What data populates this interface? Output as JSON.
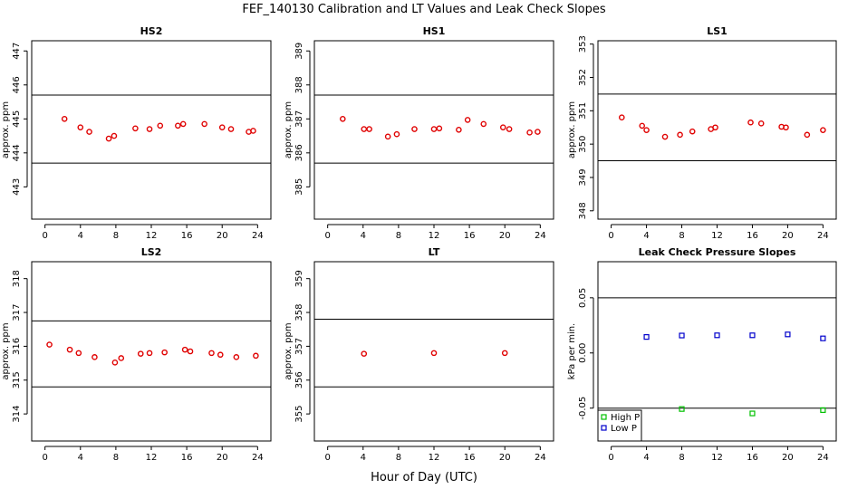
{
  "title": "FEF_140130  Calibration and LT Values and Leak Check Slopes",
  "xlabel": "Hour of Day (UTC)",
  "chart_data": [
    {
      "type": "scatter",
      "title": "HS2",
      "ylabel": "approx. ppm",
      "xlim": [
        -1.5,
        25.5
      ],
      "ylim": [
        442.05,
        447.3
      ],
      "xticks": [
        0,
        4,
        8,
        12,
        16,
        20,
        24
      ],
      "yticks": [
        443,
        444,
        445,
        446,
        447
      ],
      "hlines": [
        443.7,
        445.7
      ],
      "series": [
        {
          "color": "#e00000",
          "marker": "circle",
          "x": [
            2.2,
            4,
            5,
            7.2,
            7.8,
            10.2,
            11.8,
            13,
            15,
            15.6,
            18,
            20,
            21,
            23,
            23.5
          ],
          "y": [
            445.0,
            444.75,
            444.62,
            444.42,
            444.5,
            444.72,
            444.7,
            444.8,
            444.8,
            444.85,
            444.85,
            444.75,
            444.7,
            444.62,
            444.65
          ]
        }
      ]
    },
    {
      "type": "scatter",
      "title": "HS1",
      "ylabel": "approx. ppm",
      "xlim": [
        -1.5,
        25.5
      ],
      "ylim": [
        384.05,
        389.3
      ],
      "xticks": [
        0,
        4,
        8,
        12,
        16,
        20,
        24
      ],
      "yticks": [
        385,
        386,
        387,
        388,
        389
      ],
      "hlines": [
        385.7,
        387.7
      ],
      "series": [
        {
          "color": "#e00000",
          "marker": "circle",
          "x": [
            1.7,
            4.1,
            4.7,
            6.8,
            7.8,
            9.8,
            12,
            12.6,
            14.8,
            15.8,
            17.6,
            19.8,
            20.5,
            22.8,
            23.7
          ],
          "y": [
            387.0,
            386.7,
            386.7,
            386.48,
            386.55,
            386.7,
            386.7,
            386.72,
            386.68,
            386.97,
            386.85,
            386.75,
            386.7,
            386.6,
            386.62
          ]
        }
      ]
    },
    {
      "type": "scatter",
      "title": "LS1",
      "ylabel": "approx. ppm",
      "xlim": [
        -1.5,
        25.5
      ],
      "ylim": [
        347.75,
        353.1
      ],
      "xticks": [
        0,
        4,
        8,
        12,
        16,
        20,
        24
      ],
      "yticks": [
        348,
        349,
        350,
        351,
        352,
        353
      ],
      "hlines": [
        349.5,
        351.5
      ],
      "series": [
        {
          "color": "#e00000",
          "marker": "circle",
          "x": [
            1.2,
            3.5,
            4,
            6.1,
            7.8,
            9.2,
            11.3,
            11.8,
            15.8,
            17,
            19.3,
            19.8,
            22.2,
            24
          ],
          "y": [
            350.8,
            350.55,
            350.42,
            350.22,
            350.28,
            350.38,
            350.45,
            350.5,
            350.65,
            350.62,
            350.52,
            350.5,
            350.28,
            350.42
          ]
        }
      ]
    },
    {
      "type": "scatter",
      "title": "LS2",
      "ylabel": "approx. ppm",
      "xlim": [
        -1.5,
        25.5
      ],
      "ylim": [
        313.2,
        318.5
      ],
      "xticks": [
        0,
        4,
        8,
        12,
        16,
        20,
        24
      ],
      "yticks": [
        314,
        315,
        316,
        317,
        318
      ],
      "hlines": [
        314.8,
        316.75
      ],
      "series": [
        {
          "color": "#e00000",
          "marker": "circle",
          "x": [
            0.5,
            2.8,
            3.8,
            5.6,
            7.9,
            8.6,
            10.8,
            11.8,
            13.5,
            15.8,
            16.4,
            18.8,
            19.8,
            21.6,
            23.8
          ],
          "y": [
            316.05,
            315.9,
            315.8,
            315.68,
            315.52,
            315.65,
            315.78,
            315.8,
            315.82,
            315.9,
            315.85,
            315.8,
            315.75,
            315.68,
            315.72
          ]
        }
      ]
    },
    {
      "type": "scatter",
      "title": "LT",
      "ylabel": "approx. ppm",
      "xlim": [
        -1.5,
        25.5
      ],
      "ylim": [
        354.2,
        359.5
      ],
      "xticks": [
        0,
        4,
        8,
        12,
        16,
        20,
        24
      ],
      "yticks": [
        355,
        356,
        357,
        358,
        359
      ],
      "hlines": [
        355.8,
        357.8
      ],
      "series": [
        {
          "color": "#e00000",
          "marker": "circle",
          "x": [
            4.1,
            12,
            20
          ],
          "y": [
            356.78,
            356.8,
            356.8
          ]
        }
      ]
    },
    {
      "type": "scatter",
      "title": "Leak Check Pressure Slopes",
      "ylabel": "kPa per min.",
      "xlim": [
        -1.5,
        25.5
      ],
      "ylim": [
        -0.0798,
        0.0827
      ],
      "xticks": [
        0,
        4,
        8,
        12,
        16,
        20,
        24
      ],
      "yticks": [
        -0.05,
        0.0,
        0.05
      ],
      "ytick_labels": [
        "-0.05",
        "0.00",
        "0.05"
      ],
      "hlines": [
        -0.05,
        0.05
      ],
      "legend": "bottom-left",
      "series": [
        {
          "name": "High P",
          "color": "#00c000",
          "marker": "square",
          "x": [
            8,
            16,
            24
          ],
          "y": [
            -0.0508,
            -0.0548,
            -0.0518
          ]
        },
        {
          "name": "Low P",
          "color": "#0000cc",
          "marker": "square",
          "x": [
            4,
            8,
            12,
            16,
            20,
            24
          ],
          "y": [
            0.0145,
            0.0158,
            0.016,
            0.016,
            0.0168,
            0.0132
          ]
        }
      ]
    }
  ]
}
